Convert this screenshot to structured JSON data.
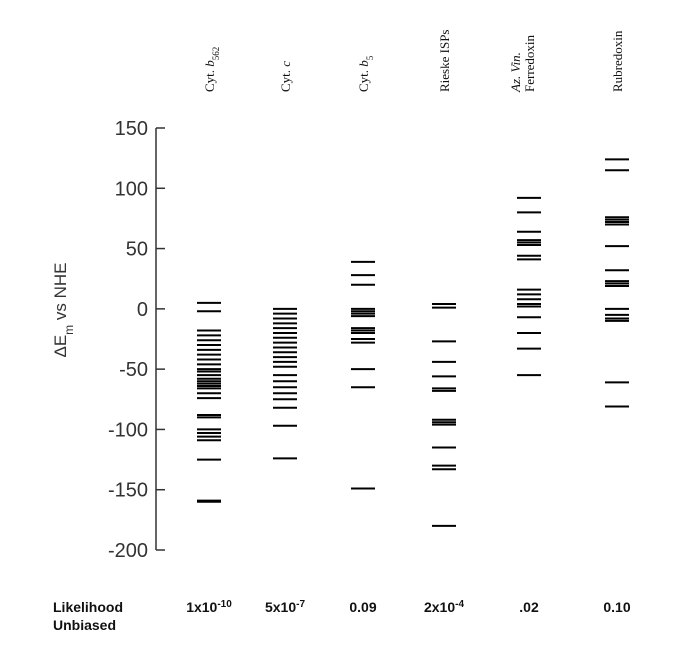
{
  "chart_data": {
    "type": "scatter",
    "title": "",
    "ylabel": {
      "prefix": "ΔE",
      "sub": "m",
      "suffix": " vs NHE"
    },
    "ylim": [
      -200,
      150
    ],
    "yticks": [
      "150",
      "100",
      "50",
      "0",
      "-50",
      "-100",
      "-150",
      "-200"
    ],
    "grid": false,
    "legend": "none",
    "mark": "horizontal-dash",
    "color": "#000000",
    "series": [
      {
        "label_lines": [
          {
            "text": "Cyt. b",
            "sub": "562",
            "italic_part": "b"
          }
        ],
        "likelihood": {
          "base": "1x10",
          "exp": "-10"
        },
        "values": [
          5,
          -2,
          -18,
          -22,
          -26,
          -30,
          -34,
          -38,
          -42,
          -46,
          -50,
          -52,
          -55,
          -58,
          -60,
          -62,
          -64,
          -66,
          -70,
          -74,
          -88,
          -90,
          -100,
          -103,
          -106,
          -109,
          -125,
          -159,
          -160
        ]
      },
      {
        "label_lines": [
          {
            "text": "Cyt. c",
            "sub": "",
            "italic_part": "c"
          }
        ],
        "likelihood": {
          "base": "5x10",
          "exp": "-7"
        },
        "values": [
          0,
          -4,
          -8,
          -12,
          -16,
          -20,
          -24,
          -28,
          -32,
          -36,
          -40,
          -44,
          -48,
          -55,
          -60,
          -65,
          -70,
          -75,
          -82,
          -97,
          -124
        ]
      },
      {
        "label_lines": [
          {
            "text": "Cyt. b",
            "sub": "5",
            "italic_part": "b"
          }
        ],
        "likelihood": {
          "base": "0.09",
          "exp": ""
        },
        "values": [
          39,
          28,
          20,
          0,
          -2,
          -4,
          -6,
          -16,
          -18,
          -20,
          -25,
          -28,
          -50,
          -65,
          -149
        ]
      },
      {
        "label_lines": [
          {
            "text": "Rieske ISPs",
            "sub": "",
            "italic_part": ""
          }
        ],
        "likelihood": {
          "base": "2x10",
          "exp": "-4"
        },
        "values": [
          4,
          1,
          -27,
          -44,
          -56,
          -66,
          -68,
          -92,
          -94,
          -96,
          -115,
          -130,
          -133,
          -180
        ]
      },
      {
        "label_lines": [
          {
            "text": "Az. Vin.",
            "sub": "",
            "italic_part": "Az. Vin."
          },
          {
            "text": "Ferredoxin",
            "sub": "",
            "italic_part": ""
          }
        ],
        "likelihood": {
          "base": ".02",
          "exp": ""
        },
        "values": [
          92,
          80,
          64,
          57,
          55,
          53,
          44,
          41,
          16,
          12,
          8,
          4,
          2,
          -7,
          -20,
          -33,
          -55
        ]
      },
      {
        "label_lines": [
          {
            "text": "Rubredoxin",
            "sub": "",
            "italic_part": ""
          }
        ],
        "likelihood": {
          "base": "0.10",
          "exp": ""
        },
        "values": [
          124,
          115,
          76,
          74,
          72,
          70,
          52,
          32,
          23,
          21,
          19,
          0,
          -5,
          -8,
          -10,
          -61,
          -81
        ]
      }
    ],
    "likelihood_label": [
      "Likelihood",
      "Unbiased"
    ]
  }
}
